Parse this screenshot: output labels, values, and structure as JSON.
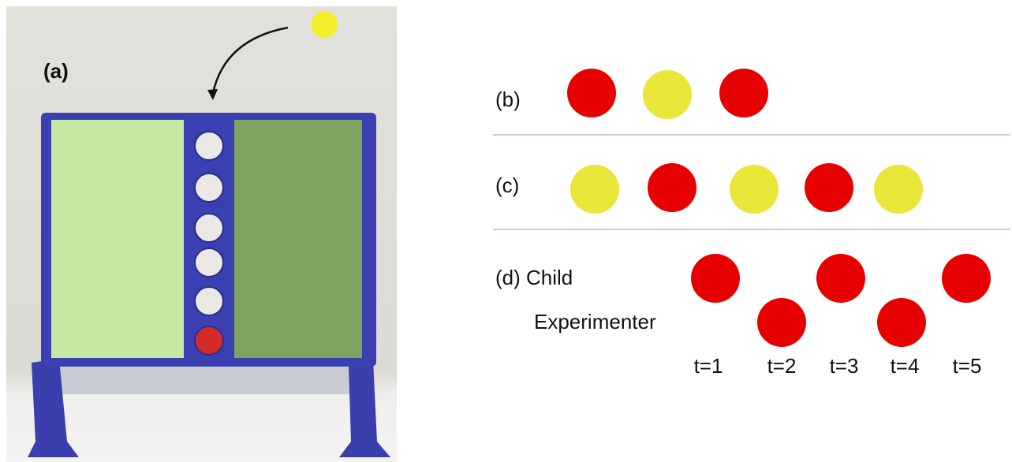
{
  "panels": {
    "a": {
      "label": "(a)"
    },
    "b": {
      "label": "(b)"
    },
    "c": {
      "label": "(c)"
    },
    "d": {
      "label": "(d) Child",
      "second_row": "Experimenter",
      "times": [
        "t=1",
        "t=2",
        "t=3",
        "t=4",
        "t=5"
      ]
    }
  }
}
